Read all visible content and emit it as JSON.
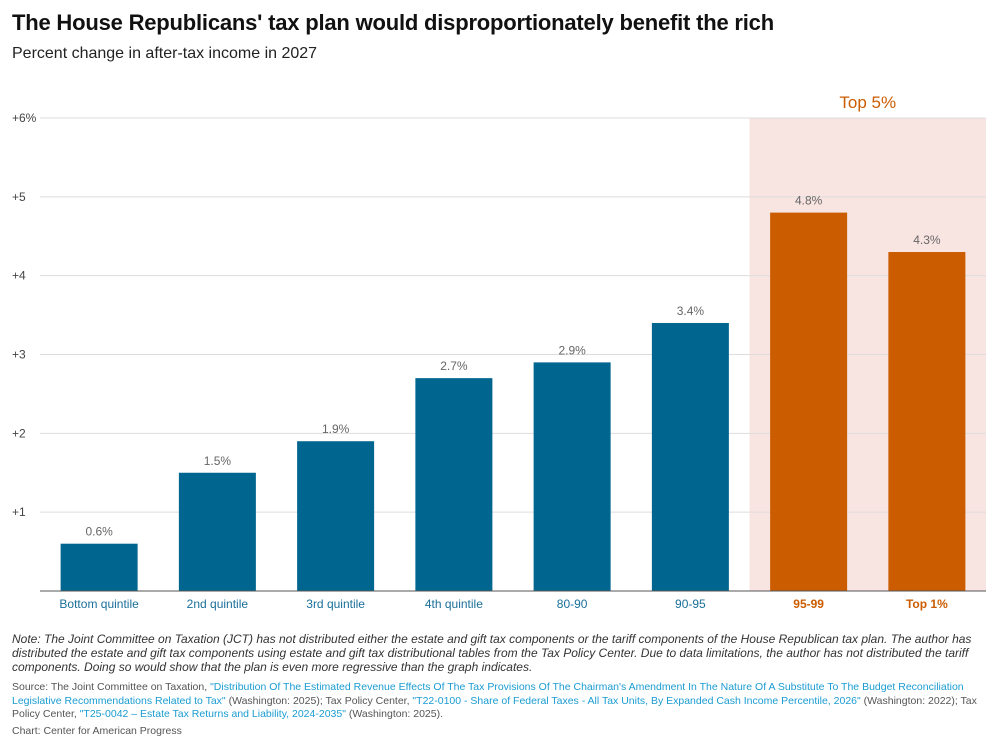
{
  "header": {
    "title": "The House Republicans' tax plan would disproportionately benefit the rich",
    "subtitle": "Percent change in after-tax income in 2027"
  },
  "chart_data": {
    "type": "bar",
    "categories": [
      "Bottom quintile",
      "2nd quintile",
      "3rd quintile",
      "4th quintile",
      "80-90",
      "90-95",
      "95-99",
      "Top 1%"
    ],
    "values": [
      0.6,
      1.5,
      1.9,
      2.7,
      2.9,
      3.4,
      4.8,
      4.3
    ],
    "data_labels": [
      "0.6%",
      "1.5%",
      "1.9%",
      "2.7%",
      "2.9%",
      "3.4%",
      "4.8%",
      "4.3%"
    ],
    "highlighted": [
      false,
      false,
      false,
      false,
      false,
      false,
      true,
      true
    ],
    "y_ticks": [
      1,
      2,
      3,
      4,
      5,
      6
    ],
    "y_tick_labels": [
      "+1",
      "+2",
      "+3",
      "+4",
      "+5",
      "+6%"
    ],
    "ylim": [
      0,
      6
    ],
    "grid": true,
    "highlight_band": {
      "label": "Top 5%",
      "categories": [
        "95-99",
        "Top 1%"
      ]
    },
    "colors": {
      "bar": "#00668f",
      "highlight_bar": "#cc5c00",
      "highlight_band": "#f8e4e1",
      "gridline": "#dddddd",
      "axis": "#555555",
      "data_label": "#666666",
      "category_label": "#1a6f99",
      "highlight_label": "#cc5c00"
    }
  },
  "note": "Note: The Joint Committee on Taxation (JCT) has not distributed either the estate and gift tax components or the tariff components of the House Republican tax plan. The author has distributed the estate and gift tax components using estate and gift tax distributional tables from the Tax Policy Center. Due to data limitations, the author has not distributed the tariff components. Doing so would show that the plan is even more regressive than the graph indicates.",
  "source": {
    "prefix": "Source: The Joint Committee on Taxation, ",
    "link1": "\"Distribution Of The Estimated Revenue Effects Of The Tax Provisions Of The Chairman's Amendment In The Nature Of A Substitute To The Budget Reconciliation Legislative Recommendations Related to Tax\"",
    "mid1": " (Washington: 2025); Tax Policy Center, ",
    "link2": "\"T22-0100 - Share of Federal Taxes - All Tax Units, By Expanded Cash Income Percentile, 2026\"",
    "mid2": " (Washington: 2022); Tax Policy Center, ",
    "link3": "\"T25-0042 – Estate Tax Returns and Liability, 2024-2035\"",
    "suffix": " (Washington: 2025)."
  },
  "credit": "Chart: Center for American Progress"
}
